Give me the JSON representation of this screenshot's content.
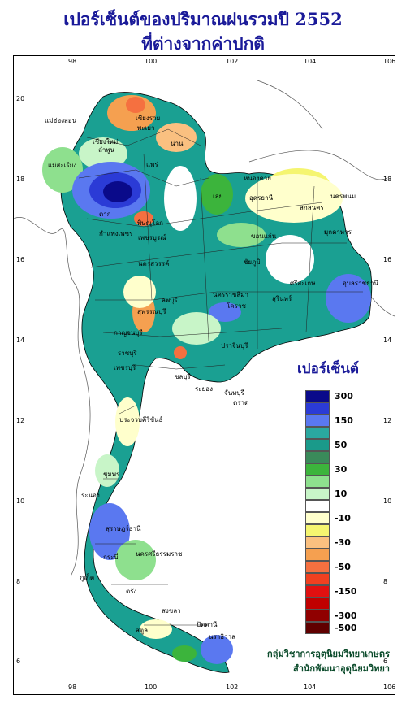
{
  "title": {
    "line1": "เปอร์เซ็นต์ของปริมาณฝนรวมปี  2552",
    "line2": "ที่ต่างจากค่าปกติ"
  },
  "axes": {
    "x_ticks": [
      "98",
      "100",
      "102",
      "104",
      "106"
    ],
    "y_ticks": [
      "20",
      "18",
      "16",
      "14",
      "12",
      "10",
      "8",
      "6"
    ]
  },
  "legend": {
    "title": "เปอร์เซ็นต์",
    "entries": [
      {
        "label": "300",
        "color": "#0a0a8a"
      },
      {
        "label": "",
        "color": "#2b3bd6"
      },
      {
        "label": "150",
        "color": "#5a78f0"
      },
      {
        "label": "",
        "color": "#2aa8a0"
      },
      {
        "label": "50",
        "color": "#1a9a8a"
      },
      {
        "label": "",
        "color": "#3a8a5a"
      },
      {
        "label": "30",
        "color": "#3cb43c"
      },
      {
        "label": "",
        "color": "#8ee08e"
      },
      {
        "label": "10",
        "color": "#c8f5c8"
      },
      {
        "label": "",
        "color": "#ffffff"
      },
      {
        "label": "-10",
        "color": "#ffffcc"
      },
      {
        "label": "",
        "color": "#f5f570"
      },
      {
        "label": "-30",
        "color": "#fac080"
      },
      {
        "label": "",
        "color": "#f5a050"
      },
      {
        "label": "-50",
        "color": "#f57040"
      },
      {
        "label": "",
        "color": "#f04020"
      },
      {
        "label": "-150",
        "color": "#e01010"
      },
      {
        "label": "",
        "color": "#c00000"
      },
      {
        "label": "-300",
        "color": "#900000"
      },
      {
        "label": "-500",
        "color": "#600000"
      }
    ]
  },
  "credits": {
    "line1": "กลุ่มวิชาการอุตุนิยมวิทยาเกษตร",
    "line2": "สำนักพัฒนาอุตุนิยมวิทยา"
  },
  "provinces": [
    "เชียงราย",
    "แม่ฮ่องสอน",
    "พะเยา",
    "เชียงใหม่",
    "ลำพูน",
    "น่าน",
    "แพร่",
    "แม่สะเรียง",
    "หนองคาย",
    "อุดรธานี",
    "นครพนม",
    "สกลนคร",
    "มุกดาหาร",
    "เลย",
    "ตาก",
    "พิษณุโลก",
    "กำแพงเพชร",
    "เพชรบูรณ์",
    "ขอนแก่น",
    "ชัยภูมิ",
    "นครสวรรค์",
    "อุบลราชธานี",
    "ศรีสะเกษ",
    "นครราชสีมา",
    "สุรินทร์",
    "ลพบุรี",
    "สุพรรณบุรี",
    "กาญจนบุรี",
    "ราชบุรี",
    "ปราจีนบุรี",
    "ชลบุรี",
    "ระยอง",
    "จันทบุรี",
    "ประจวบคีรีขันธ์",
    "ชุมพร",
    "ระนอง",
    "สุราษฎร์ธานี",
    "นครศรีธรรมราช",
    "ภูเก็ต",
    "กระบี่",
    "ตรัง",
    "สงขลา",
    "สตูล",
    "ปัตตานี",
    "นราธิวาส",
    "โคราช",
    "เพชรบุรี",
    "ตราด"
  ],
  "colors": {
    "title": "#1a1a99",
    "credit": "#0a4a2a",
    "sea": "#ffffff"
  }
}
